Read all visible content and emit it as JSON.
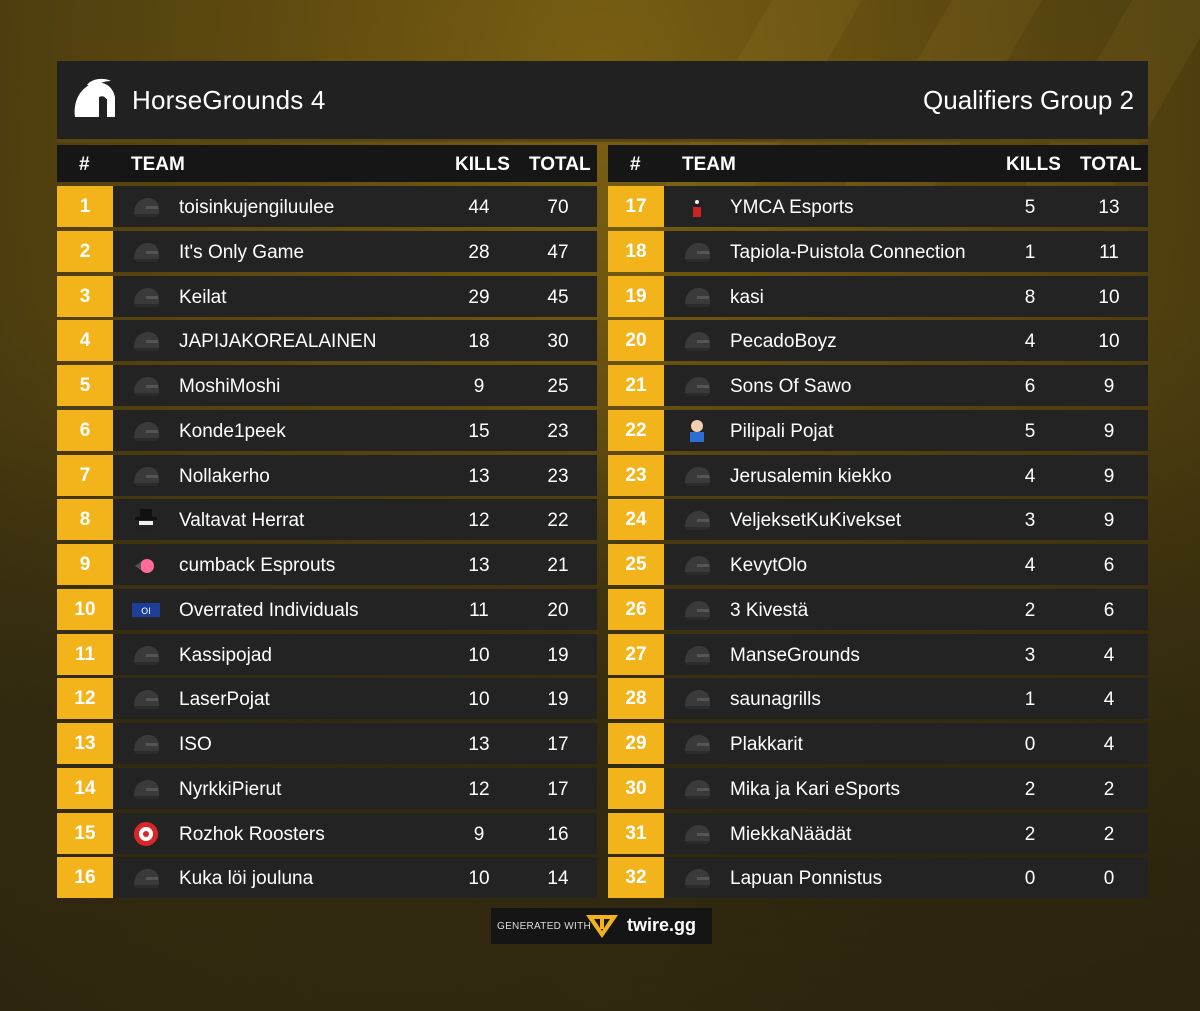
{
  "header": {
    "title": "HorseGrounds 4",
    "group": "Qualifiers Group 2"
  },
  "columns": {
    "rank": "#",
    "team": "TEAM",
    "kills": "KILLS",
    "total": "TOTAL"
  },
  "colors": {
    "accent": "#f3b31b",
    "row_bg": "#232323",
    "header_bg": "#161616"
  },
  "left_rows": [
    {
      "rank": "1",
      "team": "toisinkujengiluulee",
      "kills": "44",
      "total": "70",
      "icon": "helmet-icon"
    },
    {
      "rank": "2",
      "team": "It's Only Game",
      "kills": "28",
      "total": "47",
      "icon": "helmet-icon"
    },
    {
      "rank": "3",
      "team": "Keilat",
      "kills": "29",
      "total": "45",
      "icon": "helmet-icon"
    },
    {
      "rank": "4",
      "team": "JAPIJAKOREALAINEN",
      "kills": "18",
      "total": "30",
      "icon": "helmet-icon"
    },
    {
      "rank": "5",
      "team": "MoshiMoshi",
      "kills": "9",
      "total": "25",
      "icon": "helmet-icon"
    },
    {
      "rank": "6",
      "team": "Konde1peek",
      "kills": "15",
      "total": "23",
      "icon": "helmet-icon"
    },
    {
      "rank": "7",
      "team": "Nollakerho",
      "kills": "13",
      "total": "23",
      "icon": "helmet-icon"
    },
    {
      "rank": "8",
      "team": "Valtavat Herrat",
      "kills": "12",
      "total": "22",
      "icon": "hat-logo-icon"
    },
    {
      "rank": "9",
      "team": "cumback Esprouts",
      "kills": "13",
      "total": "21",
      "icon": "sprout-logo-icon"
    },
    {
      "rank": "10",
      "team": "Overrated Individuals",
      "kills": "11",
      "total": "20",
      "icon": "oi-logo-icon"
    },
    {
      "rank": "11",
      "team": "Kassipojad",
      "kills": "10",
      "total": "19",
      "icon": "helmet-icon"
    },
    {
      "rank": "12",
      "team": "LaserPojat",
      "kills": "10",
      "total": "19",
      "icon": "helmet-icon"
    },
    {
      "rank": "13",
      "team": "ISO",
      "kills": "13",
      "total": "17",
      "icon": "helmet-icon"
    },
    {
      "rank": "14",
      "team": "NyrkkiPierut",
      "kills": "12",
      "total": "17",
      "icon": "helmet-icon"
    },
    {
      "rank": "15",
      "team": "Rozhok Roosters",
      "kills": "9",
      "total": "16",
      "icon": "rooster-logo-icon"
    },
    {
      "rank": "16",
      "team": "Kuka löi jouluna",
      "kills": "10",
      "total": "14",
      "icon": "helmet-icon"
    }
  ],
  "right_rows": [
    {
      "rank": "17",
      "team": "YMCA Esports",
      "kills": "5",
      "total": "13",
      "icon": "ymca-logo-icon"
    },
    {
      "rank": "18",
      "team": "Tapiola-Puistola Connection",
      "kills": "1",
      "total": "11",
      "icon": "helmet-icon"
    },
    {
      "rank": "19",
      "team": "kasi",
      "kills": "8",
      "total": "10",
      "icon": "helmet-icon"
    },
    {
      "rank": "20",
      "team": "PecadoBoyz",
      "kills": "4",
      "total": "10",
      "icon": "helmet-icon"
    },
    {
      "rank": "21",
      "team": "Sons Of Sawo",
      "kills": "6",
      "total": "9",
      "icon": "helmet-icon"
    },
    {
      "rank": "22",
      "team": "Pilipali Pojat",
      "kills": "5",
      "total": "9",
      "icon": "pilipali-logo-icon"
    },
    {
      "rank": "23",
      "team": "Jerusalemin kiekko",
      "kills": "4",
      "total": "9",
      "icon": "helmet-icon"
    },
    {
      "rank": "24",
      "team": "VeljeksetKuKivekset",
      "kills": "3",
      "total": "9",
      "icon": "helmet-icon"
    },
    {
      "rank": "25",
      "team": "KevytOlo",
      "kills": "4",
      "total": "6",
      "icon": "helmet-icon"
    },
    {
      "rank": "26",
      "team": "3 Kivestä",
      "kills": "2",
      "total": "6",
      "icon": "helmet-icon"
    },
    {
      "rank": "27",
      "team": "ManseGrounds",
      "kills": "3",
      "total": "4",
      "icon": "helmet-icon"
    },
    {
      "rank": "28",
      "team": "saunagrills",
      "kills": "1",
      "total": "4",
      "icon": "helmet-icon"
    },
    {
      "rank": "29",
      "team": "Plakkarit",
      "kills": "0",
      "total": "4",
      "icon": "helmet-icon"
    },
    {
      "rank": "30",
      "team": "Mika ja Kari eSports",
      "kills": "2",
      "total": "2",
      "icon": "helmet-icon"
    },
    {
      "rank": "31",
      "team": "MiekkaNäädät",
      "kills": "2",
      "total": "2",
      "icon": "helmet-icon"
    },
    {
      "rank": "32",
      "team": "Lapuan Ponnistus",
      "kills": "0",
      "total": "0",
      "icon": "helmet-icon"
    }
  ],
  "footer": {
    "generated_with": "GENERATED WITH",
    "brand": "twire.gg"
  }
}
